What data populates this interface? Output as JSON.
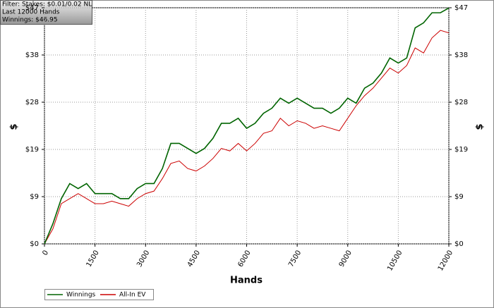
{
  "chart_data": {
    "type": "line",
    "info": [
      "Filter: Stakes: $0.01/0.02 NL",
      "Last  12000 Hands",
      "Winnings: $46.95"
    ],
    "x_label": "Hands",
    "y_label": "$",
    "y2_label": "$",
    "x": [
      0,
      250,
      500,
      750,
      1000,
      1250,
      1500,
      1750,
      2000,
      2250,
      2500,
      2750,
      3000,
      3250,
      3500,
      3750,
      4000,
      4250,
      4500,
      4750,
      5000,
      5250,
      5500,
      5750,
      6000,
      6250,
      6500,
      6750,
      7000,
      7250,
      7500,
      7750,
      8000,
      8250,
      8500,
      8750,
      9000,
      9250,
      9500,
      9750,
      10000,
      10250,
      10500,
      10750,
      11000,
      11250,
      11500,
      11750,
      12000
    ],
    "series": [
      {
        "name": "Winnings",
        "color": "#006400",
        "values": [
          0,
          4,
          9,
          12,
          11,
          12,
          10,
          10,
          10,
          9,
          9,
          11,
          12,
          12,
          15,
          20,
          20,
          19,
          18,
          19,
          21,
          24,
          24,
          25,
          23,
          24,
          26,
          27,
          29,
          28,
          29,
          28,
          27,
          27,
          26,
          27,
          29,
          28,
          31,
          32,
          34,
          37,
          36,
          37,
          43,
          44,
          46,
          46,
          46.95
        ]
      },
      {
        "name": "All-In EV",
        "color": "#cc0000",
        "values": [
          0,
          3,
          8,
          9,
          10,
          9,
          8,
          8,
          8.5,
          8,
          7.5,
          9,
          10,
          10.5,
          13,
          16,
          16.5,
          15,
          14.5,
          15.5,
          17,
          19,
          18.5,
          20,
          18.5,
          20,
          22,
          22.5,
          25,
          23.5,
          24.5,
          24,
          23,
          23.5,
          23,
          22.5,
          25,
          27.5,
          29.5,
          31,
          33,
          35,
          34,
          35.5,
          39,
          38,
          41,
          42.5,
          42
        ]
      }
    ],
    "xlim": [
      0,
      12000
    ],
    "xticks": [
      0,
      1500,
      3000,
      4500,
      6000,
      7500,
      9000,
      10500,
      12000
    ],
    "ylim": [
      0,
      47
    ],
    "yticks": [
      {
        "value": 0,
        "label": "$0"
      },
      {
        "value": 9.4,
        "label": "$9"
      },
      {
        "value": 18.8,
        "label": "$19"
      },
      {
        "value": 28.2,
        "label": "$28"
      },
      {
        "value": 37.6,
        "label": "$38"
      },
      {
        "value": 47,
        "label": "$47"
      }
    ],
    "grid": true
  }
}
